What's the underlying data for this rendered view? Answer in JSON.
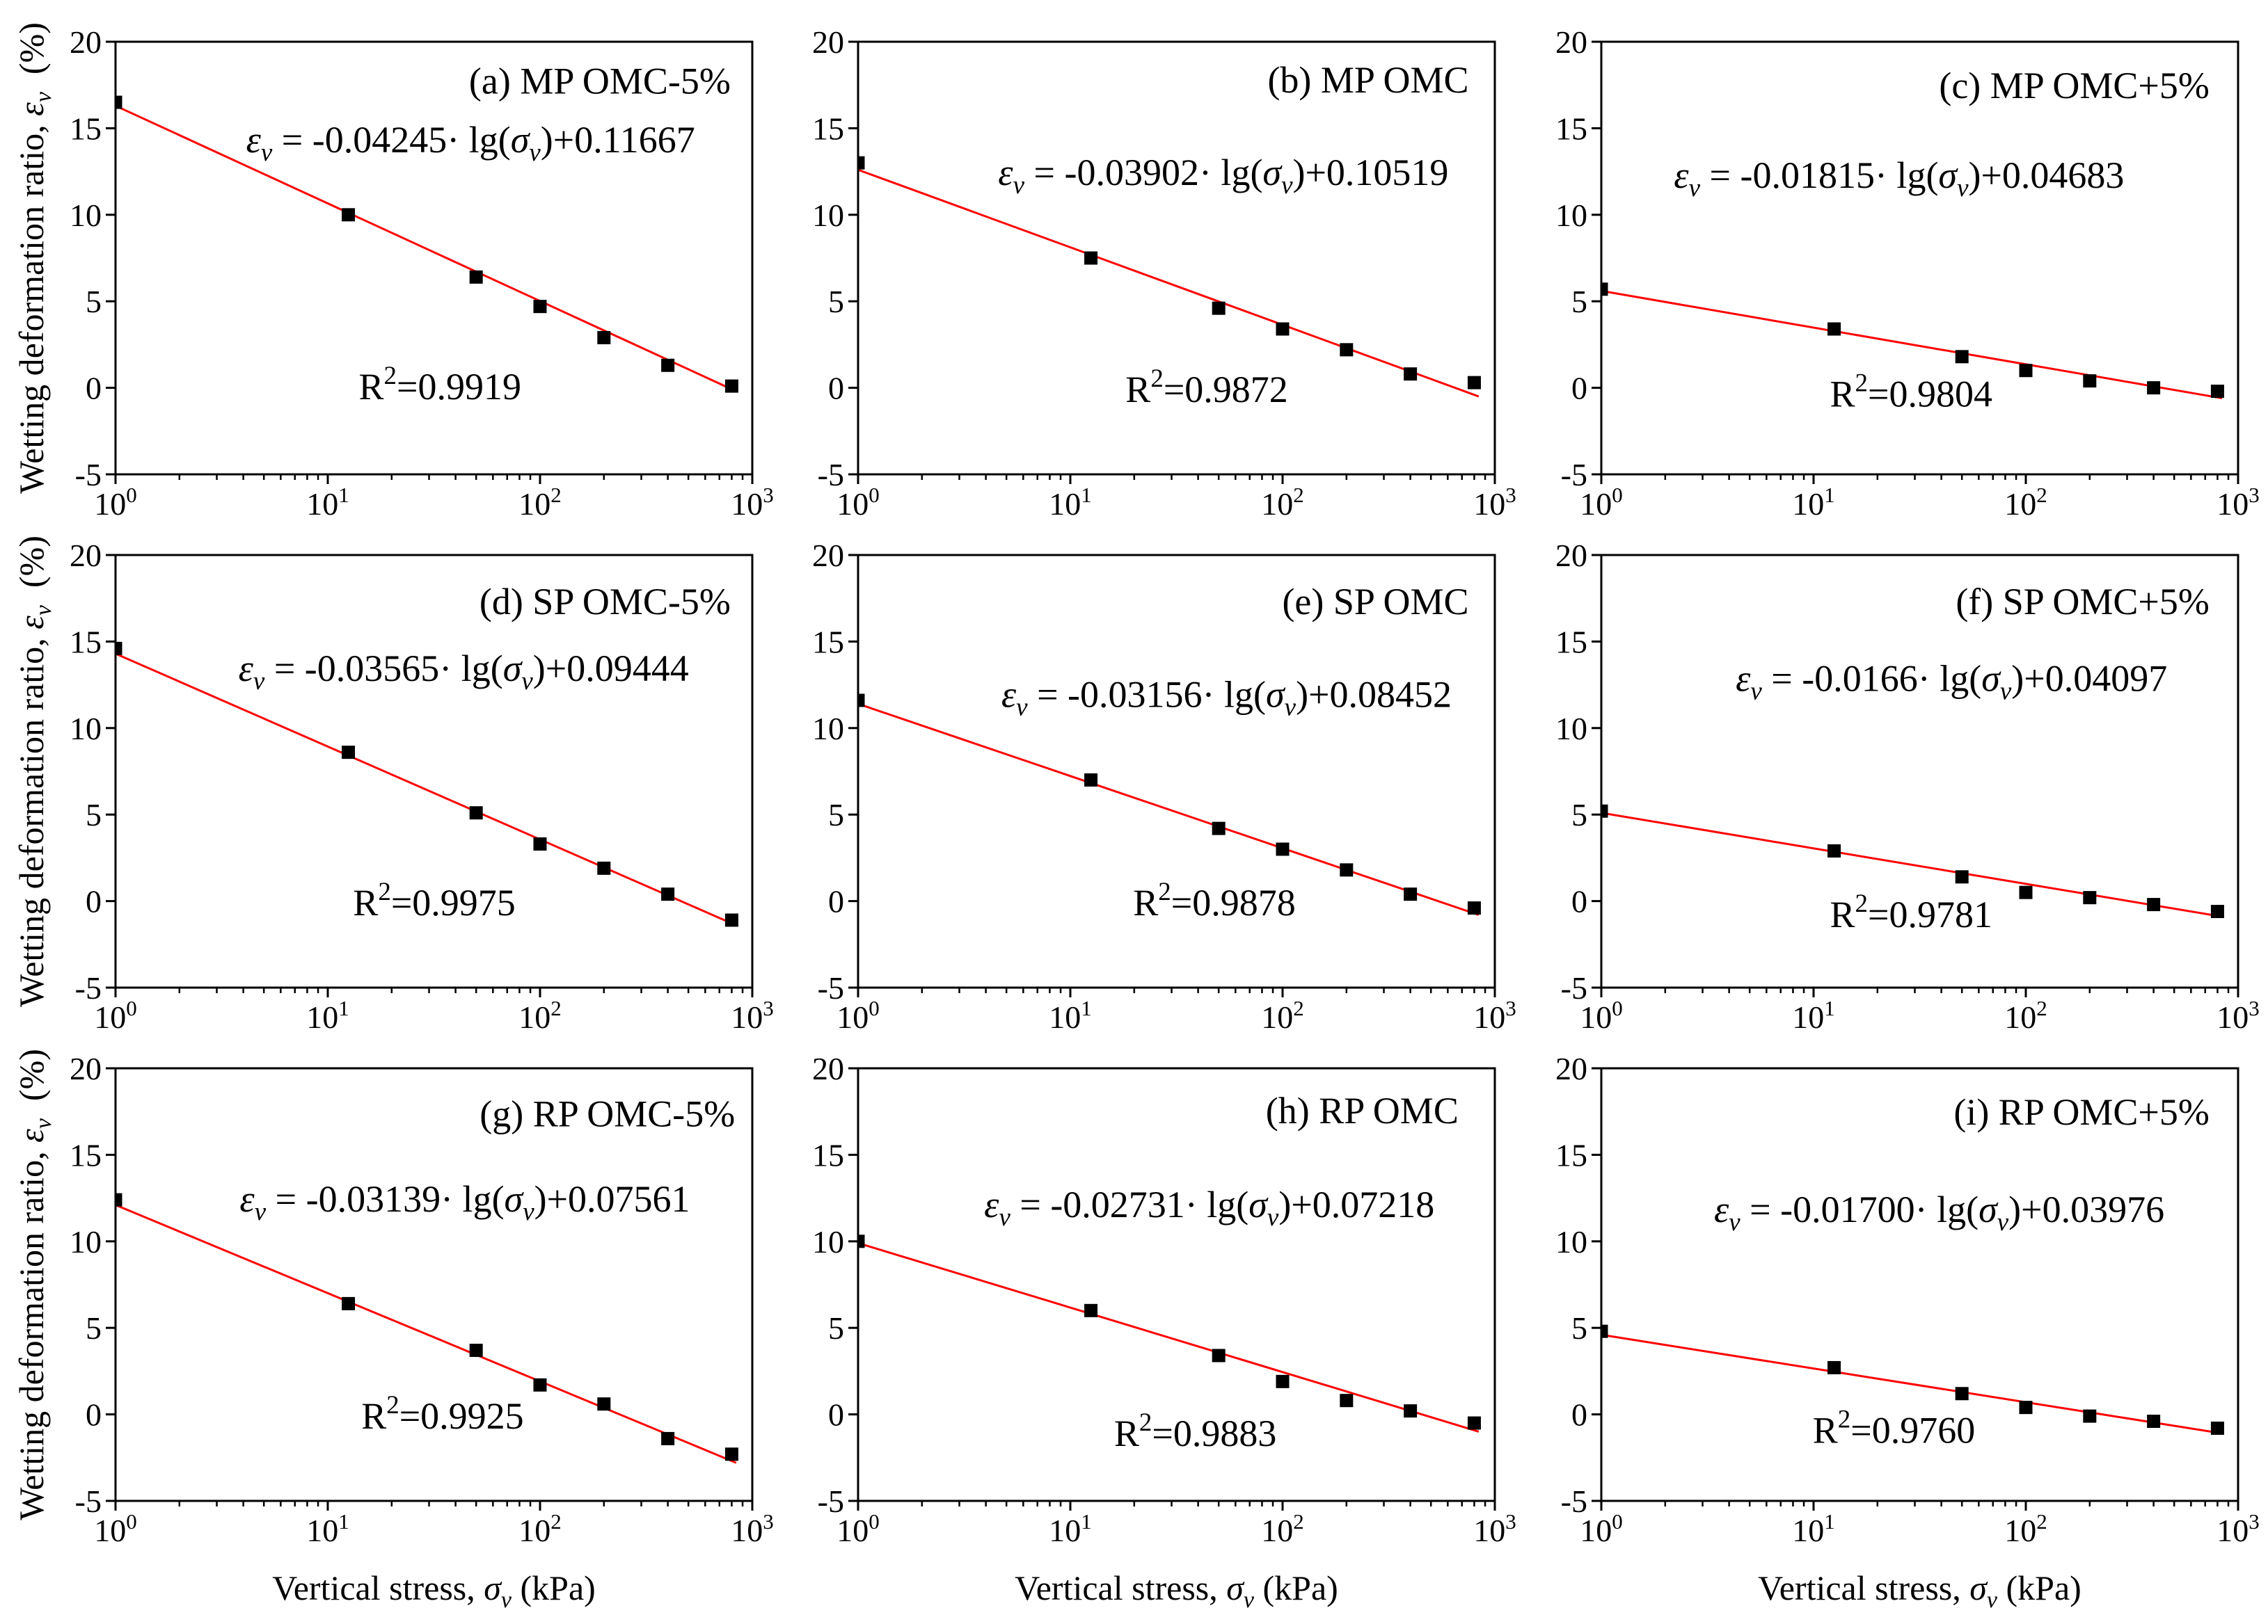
{
  "figure": {
    "axis_labels": {
      "y": [
        "Wetting deformation ratio, ",
        "ε",
        "v",
        "  (%)"
      ],
      "x": [
        "Vertical stress, ",
        "σ",
        "v",
        " (kPa)"
      ]
    },
    "y_tick_labels": [
      "20",
      "15",
      "10",
      "5",
      "0",
      "-5"
    ],
    "x_tick_labels": [
      [
        "10",
        "0"
      ],
      [
        "10",
        "1"
      ],
      [
        "10",
        "2"
      ],
      [
        "10",
        "3"
      ]
    ],
    "colors": {
      "frame": "#000000",
      "markers": "#000000",
      "fit_line": "#ff0000"
    }
  },
  "chart_data": [
    {
      "type": "scatter",
      "title": "(a) MP OMC-5%",
      "xscale": "log",
      "xlim": [
        1,
        1000
      ],
      "ylim": [
        -5,
        20
      ],
      "grid": false,
      "series": [
        {
          "x": [
            1,
            12.5,
            50,
            100,
            200,
            400,
            800
          ],
          "y": [
            16.5,
            10.0,
            6.4,
            4.7,
            2.9,
            1.3,
            0.1
          ]
        }
      ],
      "fit": {
        "x": [
          1,
          840
        ],
        "y": [
          16.3,
          -0.2
        ]
      },
      "equation": [
        "ε",
        "v",
        " = -0.04245· lg(",
        "σ",
        "v",
        ")+0.11667"
      ],
      "r2": [
        "R",
        "2",
        "=0.9919"
      ]
    },
    {
      "type": "scatter",
      "title": "(b) MP OMC",
      "xscale": "log",
      "xlim": [
        1,
        1000
      ],
      "ylim": [
        -5,
        20
      ],
      "grid": false,
      "series": [
        {
          "x": [
            1,
            12.5,
            50,
            100,
            200,
            400,
            800
          ],
          "y": [
            13.0,
            7.5,
            4.6,
            3.4,
            2.2,
            0.8,
            0.3
          ]
        }
      ],
      "fit": {
        "x": [
          1,
          840
        ],
        "y": [
          12.6,
          -0.5
        ]
      },
      "equation": [
        "ε",
        "v",
        " = -0.03902· lg(",
        "σ",
        "v",
        ")+0.10519"
      ],
      "r2": [
        "R",
        "2",
        "=0.9872"
      ]
    },
    {
      "type": "scatter",
      "title": "(c) MP OMC+5%",
      "xscale": "log",
      "xlim": [
        1,
        1000
      ],
      "ylim": [
        -5,
        20
      ],
      "grid": false,
      "series": [
        {
          "x": [
            1,
            12.5,
            50,
            100,
            200,
            400,
            800
          ],
          "y": [
            5.7,
            3.4,
            1.8,
            1.0,
            0.4,
            0.0,
            -0.2
          ]
        }
      ],
      "fit": {
        "x": [
          1,
          840
        ],
        "y": [
          5.6,
          -0.6
        ]
      },
      "equation": [
        "ε",
        "v",
        " = -0.01815· lg(",
        "σ",
        "v",
        ")+0.04683"
      ],
      "r2": [
        "R",
        "2",
        "=0.9804"
      ]
    },
    {
      "type": "scatter",
      "title": "(d) SP OMC-5%",
      "xscale": "log",
      "xlim": [
        1,
        1000
      ],
      "ylim": [
        -5,
        20
      ],
      "grid": false,
      "series": [
        {
          "x": [
            1,
            12.5,
            50,
            100,
            200,
            400,
            800
          ],
          "y": [
            14.6,
            8.6,
            5.1,
            3.3,
            1.9,
            0.4,
            -1.1
          ]
        }
      ],
      "fit": {
        "x": [
          1,
          840
        ],
        "y": [
          14.3,
          -1.4
        ]
      },
      "equation": [
        "ε",
        "v",
        " = -0.03565· lg(",
        "σ",
        "v",
        ")+0.09444"
      ],
      "r2": [
        "R",
        "2",
        "=0.9975"
      ]
    },
    {
      "type": "scatter",
      "title": "(e) SP OMC",
      "xscale": "log",
      "xlim": [
        1,
        1000
      ],
      "ylim": [
        -5,
        20
      ],
      "grid": false,
      "series": [
        {
          "x": [
            1,
            12.5,
            50,
            100,
            200,
            400,
            800
          ],
          "y": [
            11.6,
            7.0,
            4.2,
            3.0,
            1.8,
            0.4,
            -0.4
          ]
        }
      ],
      "fit": {
        "x": [
          1,
          840
        ],
        "y": [
          11.4,
          -0.8
        ]
      },
      "equation": [
        "ε",
        "v",
        " = -0.03156· lg(",
        "σ",
        "v",
        ")+0.08452"
      ],
      "r2": [
        "R",
        "2",
        "=0.9878"
      ]
    },
    {
      "type": "scatter",
      "title": "(f) SP OMC+5%",
      "xscale": "log",
      "xlim": [
        1,
        1000
      ],
      "ylim": [
        -5,
        20
      ],
      "grid": false,
      "series": [
        {
          "x": [
            1,
            12.5,
            50,
            100,
            200,
            400,
            800
          ],
          "y": [
            5.2,
            2.9,
            1.4,
            0.5,
            0.2,
            -0.2,
            -0.6
          ]
        }
      ],
      "fit": {
        "x": [
          1,
          840
        ],
        "y": [
          5.1,
          -0.9
        ]
      },
      "equation": [
        "ε",
        "v",
        " = -0.0166· lg(",
        "σ",
        "v",
        ")+0.04097"
      ],
      "r2": [
        "R",
        "2",
        "=0.9781"
      ]
    },
    {
      "type": "scatter",
      "title": "(g) RP OMC-5%",
      "xscale": "log",
      "xlim": [
        1,
        1000
      ],
      "ylim": [
        -5,
        20
      ],
      "grid": false,
      "series": [
        {
          "x": [
            1,
            12.5,
            50,
            100,
            200,
            400,
            800
          ],
          "y": [
            12.4,
            6.4,
            3.7,
            1.7,
            0.6,
            -1.4,
            -2.3
          ]
        }
      ],
      "fit": {
        "x": [
          1,
          840
        ],
        "y": [
          12.1,
          -2.8
        ]
      },
      "equation": [
        "ε",
        "v",
        " = -0.03139· lg(",
        "σ",
        "v",
        ")+0.07561"
      ],
      "r2": [
        "R",
        "2",
        "=0.9925"
      ]
    },
    {
      "type": "scatter",
      "title": "(h) RP OMC",
      "xscale": "log",
      "xlim": [
        1,
        1000
      ],
      "ylim": [
        -5,
        20
      ],
      "grid": false,
      "series": [
        {
          "x": [
            1,
            12.5,
            50,
            100,
            200,
            400,
            800
          ],
          "y": [
            10.0,
            6.0,
            3.4,
            1.9,
            0.8,
            0.2,
            -0.5
          ]
        }
      ],
      "fit": {
        "x": [
          1,
          840
        ],
        "y": [
          9.9,
          -1.0
        ]
      },
      "equation": [
        "ε",
        "v",
        " = -0.02731· lg(",
        "σ",
        "v",
        ")+0.07218"
      ],
      "r2": [
        "R",
        "2",
        "=0.9883"
      ]
    },
    {
      "type": "scatter",
      "title": "(i) RP OMC+5%",
      "xscale": "log",
      "xlim": [
        1,
        1000
      ],
      "ylim": [
        -5,
        20
      ],
      "grid": false,
      "series": [
        {
          "x": [
            1,
            12.5,
            50,
            100,
            200,
            400,
            800
          ],
          "y": [
            4.8,
            2.7,
            1.2,
            0.4,
            -0.1,
            -0.4,
            -0.8
          ]
        }
      ],
      "fit": {
        "x": [
          1,
          840
        ],
        "y": [
          4.6,
          -1.1
        ]
      },
      "equation": [
        "ε",
        "v",
        " = -0.01700· lg(",
        "σ",
        "v",
        ")+0.03976"
      ],
      "r2": [
        "R",
        "2",
        "=0.9760"
      ]
    }
  ]
}
